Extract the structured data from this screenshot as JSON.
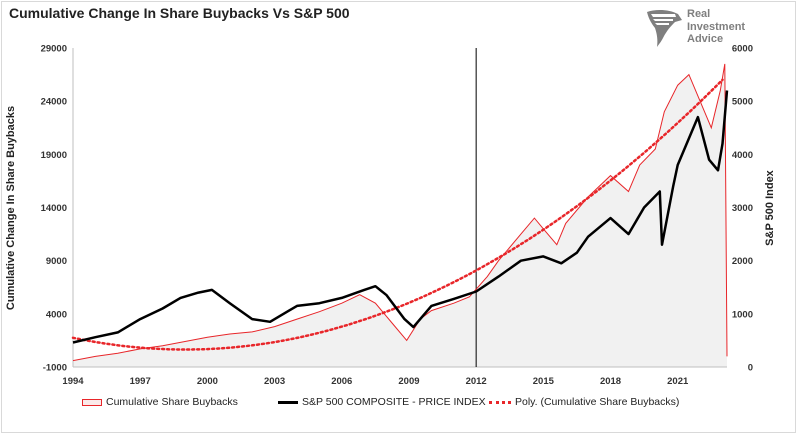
{
  "title": "Cumulative Change In Share Buybacks Vs S&P 500",
  "logo": {
    "line1": "Real",
    "line2": "Investment",
    "line3": "Advice",
    "icon": "eagle-head-logo-icon"
  },
  "chart_data": {
    "type": "line",
    "left_axis": {
      "label": "Cumulative Change In Share Buybacks",
      "ticks": [
        "-1000",
        "4000",
        "9000",
        "14000",
        "19000",
        "24000",
        "29000"
      ],
      "range": [
        -1000,
        29000
      ]
    },
    "right_axis": {
      "label": "S&P 500 Index",
      "ticks": [
        "0",
        "1000",
        "2000",
        "3000",
        "4000",
        "5000",
        "6000"
      ],
      "range": [
        0,
        6000
      ]
    },
    "x_ticks": [
      "1994",
      "1997",
      "2000",
      "2003",
      "2006",
      "2009",
      "2012",
      "2015",
      "2018",
      "2021"
    ],
    "x_range": [
      1994,
      2023.2
    ],
    "vertical_marker": 2012,
    "colors": {
      "buybacks": "#e8262a",
      "sp500": "#000000",
      "fill": "#f1f1f1"
    },
    "series": [
      {
        "name": "Cumulative Share Buybacks",
        "axis": "left",
        "style": "area",
        "x": [
          1994,
          1995,
          1996,
          1997,
          1998,
          1999,
          2000,
          2001,
          2002,
          2003,
          2004,
          2005,
          2006,
          2006.8,
          2007.5,
          2008.3,
          2008.9,
          2009.5,
          2010,
          2011,
          2011.7,
          2012.5,
          2013,
          2014,
          2014.6,
          2015,
          2015.6,
          2016,
          2017,
          2018,
          2018.8,
          2019.3,
          2020,
          2020.4,
          2021,
          2021.5,
          2022,
          2022.5,
          2022.9,
          2023.1,
          2023.2
        ],
        "values": [
          -400,
          0,
          300,
          700,
          1000,
          1400,
          1800,
          2100,
          2300,
          2800,
          3500,
          4200,
          5000,
          5800,
          5000,
          3000,
          1500,
          3500,
          4300,
          5000,
          5600,
          7500,
          9000,
          11500,
          13000,
          12000,
          10500,
          12500,
          15000,
          17000,
          15500,
          18000,
          19500,
          23000,
          25500,
          26500,
          24000,
          21500,
          25000,
          27500,
          0
        ]
      },
      {
        "name": "S&P 500 COMPOSITE - PRICE INDEX",
        "axis": "right",
        "style": "line",
        "x": [
          1994,
          1995,
          1996,
          1997,
          1998,
          1998.8,
          1999.6,
          2000.2,
          2001,
          2002,
          2002.8,
          2003.6,
          2004,
          2005,
          2006,
          2007,
          2007.5,
          2008,
          2008.8,
          2009.2,
          2010,
          2011,
          2012,
          2013,
          2014,
          2015,
          2015.8,
          2016.5,
          2017,
          2018,
          2018.8,
          2019.5,
          2020.2,
          2020.3,
          2020.8,
          2021,
          2021.9,
          2022.4,
          2022.8,
          2023,
          2023.2
        ],
        "values": [
          460,
          560,
          650,
          900,
          1100,
          1300,
          1400,
          1450,
          1200,
          900,
          850,
          1050,
          1150,
          1200,
          1300,
          1450,
          1520,
          1350,
          900,
          750,
          1150,
          1280,
          1420,
          1700,
          2000,
          2080,
          1950,
          2150,
          2450,
          2800,
          2500,
          3000,
          3300,
          2300,
          3400,
          3800,
          4700,
          3900,
          3700,
          4200,
          5200
        ]
      },
      {
        "name": "Poly. (Cumulative Share Buybacks)",
        "axis": "left",
        "style": "dotted"
      }
    ]
  }
}
